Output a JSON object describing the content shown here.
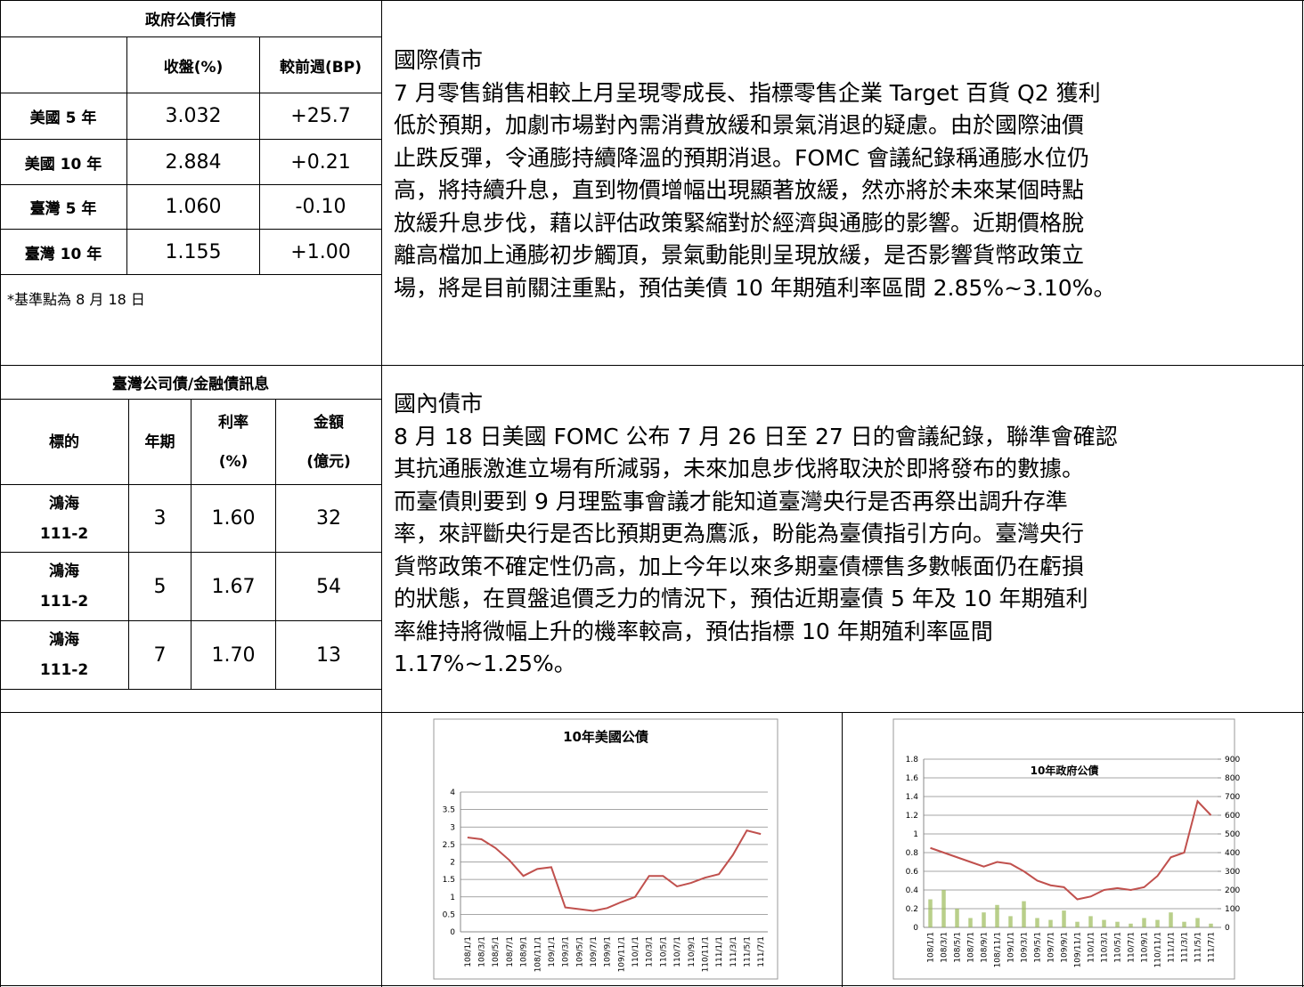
{
  "gov_table": {
    "title": "政府公債行情",
    "headers": [
      "收盤(%)",
      "較前週(BP)"
    ],
    "rows": [
      [
        "美國 5 年",
        "3.032",
        "+25.7"
      ],
      [
        "美國 10 年",
        "2.884",
        "+0.21"
      ],
      [
        "臺灣 5 年",
        "1.060",
        "-0.10"
      ],
      [
        "臺灣 10 年",
        "1.155",
        "+1.00"
      ]
    ],
    "note": "*基準點為 8 月 18 日"
  },
  "corp_table": {
    "title": "臺灣公司債/金融債訊息",
    "headers": [
      [
        "標的"
      ],
      [
        "年期"
      ],
      [
        "利率",
        "(%)"
      ],
      [
        "金額",
        "(億元)"
      ]
    ],
    "rows": [
      [
        [
          "鴻海",
          "111-2"
        ],
        "3",
        "1.60",
        "32"
      ],
      [
        [
          "鴻海",
          "111-2"
        ],
        "5",
        "1.67",
        "54"
      ],
      [
        [
          "鴻海",
          "111-2"
        ],
        "7",
        "1.70",
        "13"
      ]
    ]
  },
  "intl": {
    "title": "國際債市",
    "lines": [
      "7 月零售銷售相較上月呈現零成長、指標零售企業 Target 百貨 Q2 獲利",
      "低於預期，加劇市場對內需消費放緩和景氣消退的疑慮。由於國際油價",
      "止跌反彈，令通膨持續降溫的預期消退。FOMC 會議紀錄稱通膨水位仍",
      "高，將持續升息，直到物價增幅出現顯著放緩，然亦將於未來某個時點",
      "放緩升息步伐，藉以評估政策緊縮對於經濟與通膨的影響。近期價格脫",
      "離高檔加上通膨初步觸頂，景氣動能則呈現放緩，是否影響貨幣政策立",
      "場，將是目前關注重點，預估美債 10 年期殖利率區間 2.85%~3.10%。"
    ]
  },
  "domestic": {
    "title": "國內債市",
    "lines": [
      "8 月 18 日美國 FOMC 公布 7 月 26 日至 27 日的會議紀錄，聯準會確認",
      "其抗通脹激進立場有所減弱，未來加息步伐將取決於即將發布的數據。",
      "而臺債則要到 9 月理監事會議才能知道臺灣央行是否再祭出調升存準",
      "率，來評斷央行是否比預期更為鷹派，盼能為臺債指引方向。臺灣央行",
      "貨幣政策不確定性仍高，加上今年以來多期臺債標售多數帳面仍在虧損",
      "的狀態，在買盤追價乏力的情況下，預估近期臺債 5 年及 10 年期殖利",
      "率維持將微幅上升的機率較高，預估指標 10 年期殖利率區間",
      "1.17%~1.25%。"
    ]
  },
  "chart_data": [
    {
      "type": "line",
      "title": "10年美國公債",
      "categories": [
        "108/1/1",
        "108/3/1",
        "108/5/1",
        "108/7/1",
        "108/9/1",
        "108/11/1",
        "109/1/1",
        "109/3/1",
        "109/5/1",
        "109/7/1",
        "109/9/1",
        "109/11/1",
        "110/1/1",
        "110/3/1",
        "110/5/1",
        "110/7/1",
        "110/9/1",
        "110/11/1",
        "111/1/1",
        "111/3/1",
        "111/5/1",
        "111/7/1"
      ],
      "series": [
        {
          "color": "#c0504d",
          "values": [
            2.7,
            2.65,
            2.4,
            2.05,
            1.6,
            1.8,
            1.85,
            0.7,
            0.65,
            0.6,
            0.68,
            0.85,
            1.0,
            1.6,
            1.6,
            1.3,
            1.4,
            1.55,
            1.65,
            2.2,
            2.9,
            2.8
          ]
        }
      ],
      "ylim": [
        0,
        4
      ],
      "yticks": [
        0,
        0.5,
        1,
        1.5,
        2,
        2.5,
        3,
        3.5,
        4
      ],
      "grid": true
    },
    {
      "type": "line",
      "title": "10年政府公債",
      "categories": [
        "108/1/1",
        "108/3/1",
        "108/5/1",
        "108/7/1",
        "108/9/1",
        "108/11/1",
        "109/1/1",
        "109/3/1",
        "109/5/1",
        "109/7/1",
        "109/9/1",
        "109/11/1",
        "110/1/1",
        "110/3/1",
        "110/5/1",
        "110/7/1",
        "110/9/1",
        "110/11/1",
        "111/1/1",
        "111/3/1",
        "111/5/1",
        "111/7/1"
      ],
      "series": [
        {
          "color": "#c0504d",
          "values": [
            0.85,
            0.8,
            0.75,
            0.7,
            0.65,
            0.7,
            0.68,
            0.6,
            0.5,
            0.45,
            0.43,
            0.3,
            0.33,
            0.4,
            0.42,
            0.4,
            0.43,
            0.55,
            0.75,
            0.8,
            1.35,
            1.2
          ]
        },
        {
          "type": "bar",
          "axis": "y2",
          "color": "#9bbb59",
          "values": [
            150,
            200,
            100,
            50,
            80,
            120,
            60,
            140,
            50,
            40,
            90,
            30,
            60,
            40,
            30,
            20,
            50,
            40,
            80,
            30,
            50,
            20
          ]
        }
      ],
      "ylim": [
        0,
        1.8
      ],
      "yticks": [
        0,
        0.2,
        0.4,
        0.6,
        0.8,
        1,
        1.2,
        1.4,
        1.6,
        1.8
      ],
      "y2lim": [
        0,
        900
      ],
      "y2ticks": [
        0,
        100,
        200,
        300,
        400,
        500,
        600,
        700,
        800,
        900
      ],
      "grid": true
    }
  ]
}
